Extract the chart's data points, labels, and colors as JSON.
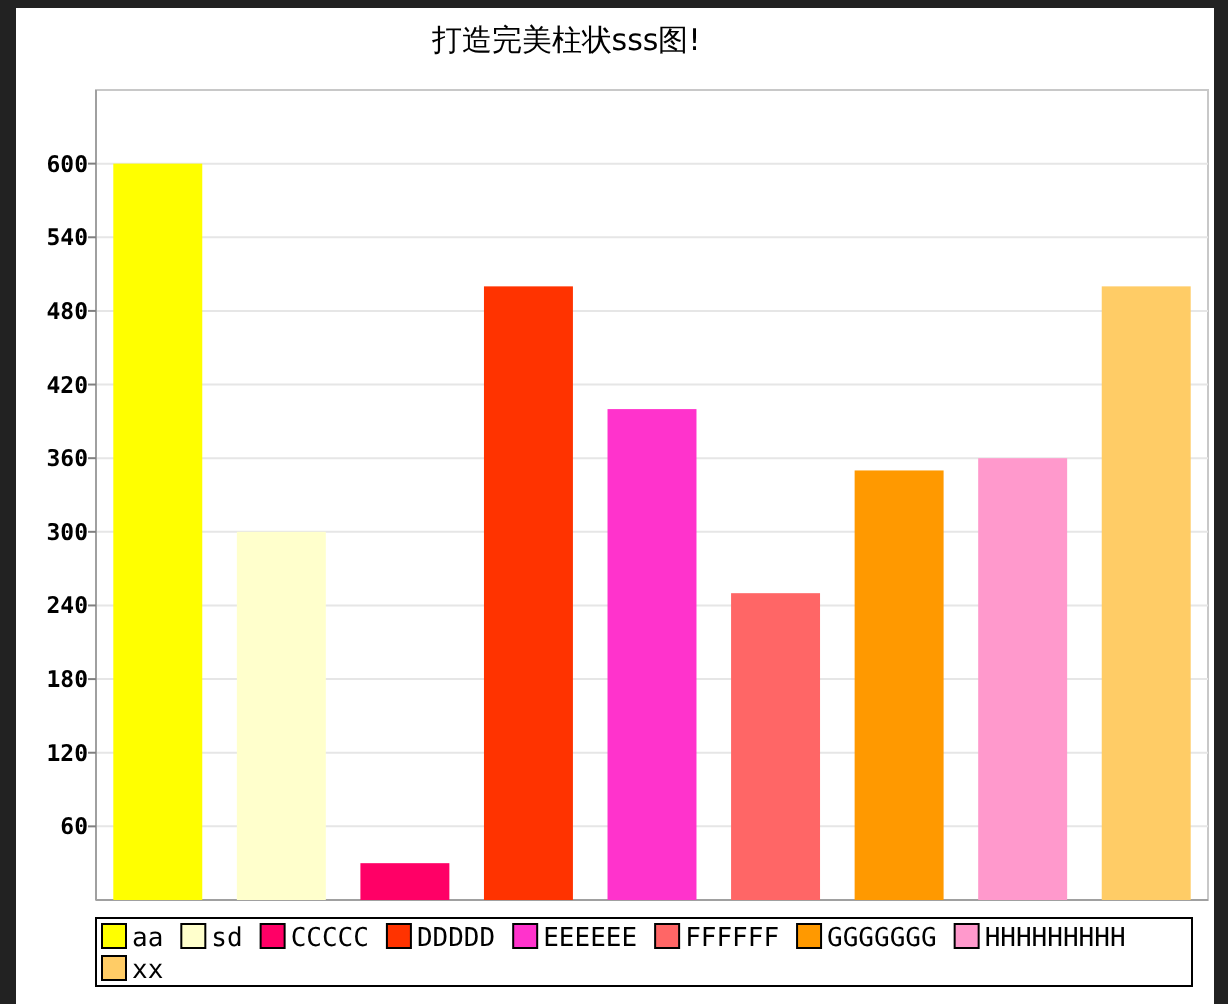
{
  "chart_data": {
    "type": "bar",
    "title": "打造完美柱状sss图!",
    "categories": [
      null
    ],
    "series": [
      {
        "name": "aa",
        "color": "#ffff00",
        "values": [
          600
        ]
      },
      {
        "name": "sd",
        "color": "#ffffcc",
        "values": [
          300
        ]
      },
      {
        "name": "CCCCC",
        "color": "#ff0066",
        "values": [
          30
        ]
      },
      {
        "name": "DDDDD",
        "color": "#ff3300",
        "values": [
          500
        ]
      },
      {
        "name": "EEEEEE",
        "color": "#ff33cc",
        "values": [
          400
        ]
      },
      {
        "name": "FFFFFF",
        "color": "#ff6666",
        "values": [
          250
        ]
      },
      {
        "name": "GGGGGGG",
        "color": "#ff9900",
        "values": [
          350
        ]
      },
      {
        "name": "HHHHHHHHH",
        "color": "#ff99cc",
        "values": [
          360
        ]
      },
      {
        "name": "xx",
        "color": "#ffcc66",
        "values": [
          500
        ]
      }
    ],
    "ylim": [
      0,
      660
    ],
    "yticks": [
      60,
      120,
      180,
      240,
      300,
      360,
      420,
      480,
      540,
      600
    ],
    "grid": "y",
    "legend": "bottom"
  }
}
